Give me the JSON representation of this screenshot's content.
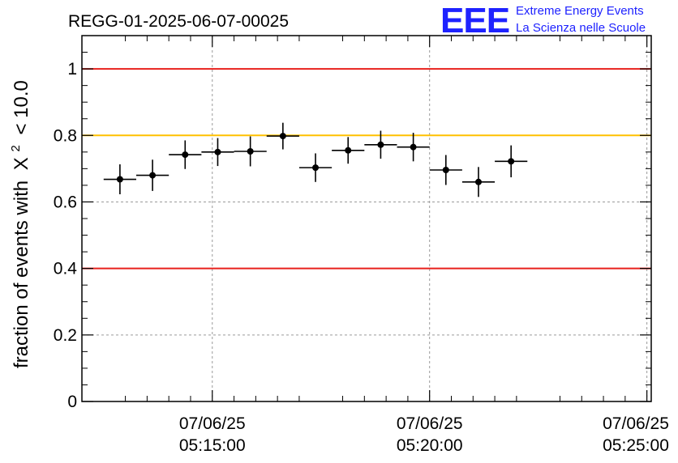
{
  "chart_data": {
    "type": "scatter",
    "title": "REGG-01-2025-06-07-00025",
    "ylabel": "fraction of events with",
    "ylabel_symbol": "X",
    "ylabel_superscript": "2",
    "ylabel_suffix": "< 10.0",
    "xlabel": "",
    "ylim": [
      0,
      1.1
    ],
    "xlim": [
      -5,
      126
    ],
    "y_ticks": [
      0,
      0.2,
      0.4,
      0.6,
      0.8,
      1
    ],
    "y_tick_labels": [
      "0",
      "0.2",
      "0.4",
      "0.6",
      "0.8",
      "1"
    ],
    "x_ticks": [
      {
        "x": 25,
        "date": "07/06/25",
        "time": "05:15:00"
      },
      {
        "x": 75,
        "date": "07/06/25",
        "time": "05:20:00"
      },
      {
        "x": 125,
        "date": "07/06/25",
        "time": "05:25:00"
      }
    ],
    "grid": true,
    "reference_lines": [
      {
        "y": 1.0,
        "color": "#e8201c"
      },
      {
        "y": 0.8,
        "color": "#ffc000"
      },
      {
        "y": 0.4,
        "color": "#e8201c"
      }
    ],
    "series": [
      {
        "name": "fraction",
        "x_halfwidth": 3.75,
        "points": [
          {
            "x": 3.75,
            "y": 0.668,
            "err": 0.045
          },
          {
            "x": 11.25,
            "y": 0.68,
            "err": 0.047
          },
          {
            "x": 18.75,
            "y": 0.742,
            "err": 0.043
          },
          {
            "x": 26.25,
            "y": 0.75,
            "err": 0.042
          },
          {
            "x": 33.75,
            "y": 0.752,
            "err": 0.045
          },
          {
            "x": 41.25,
            "y": 0.798,
            "err": 0.04
          },
          {
            "x": 48.75,
            "y": 0.703,
            "err": 0.043
          },
          {
            "x": 56.25,
            "y": 0.755,
            "err": 0.04
          },
          {
            "x": 63.75,
            "y": 0.772,
            "err": 0.042
          },
          {
            "x": 71.25,
            "y": 0.765,
            "err": 0.043
          },
          {
            "x": 78.75,
            "y": 0.696,
            "err": 0.045
          },
          {
            "x": 86.25,
            "y": 0.66,
            "err": 0.045
          },
          {
            "x": 93.75,
            "y": 0.722,
            "err": 0.048
          }
        ]
      }
    ]
  },
  "logo": {
    "mark": "EEE",
    "line1": "Extreme Energy Events",
    "line2": "La Scienza nelle Scuole",
    "color": "#1e22ff"
  }
}
